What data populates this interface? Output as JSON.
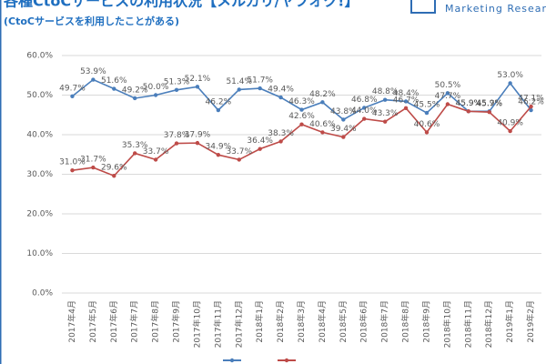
{
  "chart_data": {
    "type": "line",
    "title": "各種CtoCサービスの利用状況【メルカリ/ヤフオク!】",
    "subtitle": "(CtoCサービスを利用したことがある)",
    "logo": "Marketing Research Camp",
    "categories": [
      "2017年4月",
      "2017年5月",
      "2017年6月",
      "2017年7月",
      "2017年8月",
      "2017年9月",
      "2017年10月",
      "2017年11月",
      "2017年12月",
      "2018年1月",
      "2018年2月",
      "2018年3月",
      "2018年4月",
      "2018年5月",
      "2018年6月",
      "2018年7月",
      "2018年8月",
      "2018年9月",
      "2018年10月",
      "2018年11月",
      "2018年12月",
      "2019年1月",
      "2019年2月"
    ],
    "series": [
      {
        "color": "#4a7ebb",
        "values": [
          49.7,
          53.9,
          51.6,
          49.2,
          50.0,
          51.3,
          52.1,
          46.2,
          51.4,
          51.7,
          49.4,
          46.3,
          48.2,
          43.8,
          46.8,
          48.8,
          48.4,
          45.5,
          50.5,
          45.9,
          45.9,
          53.0,
          46.2
        ],
        "value_labels": [
          "49.7%",
          "53.9%",
          "51.6%",
          "49.2%",
          "50.0%",
          "51.3%",
          "52.1%",
          "46.2%",
          "51.4%",
          "51.7%",
          "49.4%",
          "46.3%",
          "48.2%",
          "43.8%",
          "46.8%",
          "48.8%",
          "48.4%",
          "45.5%",
          "50.5%",
          "45.9%",
          "45.9%",
          "53.0%",
          "46.2%"
        ]
      },
      {
        "color": "#be4b48",
        "values": [
          31.0,
          31.7,
          29.6,
          35.3,
          33.7,
          37.8,
          37.9,
          34.9,
          33.7,
          36.4,
          38.3,
          42.6,
          40.6,
          39.4,
          44.0,
          43.3,
          46.7,
          40.6,
          47.7,
          45.9,
          45.7,
          40.9,
          47.1
        ],
        "value_labels": [
          "31.0%",
          "31.7%",
          "29.6%",
          "35.3%",
          "33.7%",
          "37.8%",
          "37.9%",
          "34.9%",
          "33.7%",
          "36.4%",
          "38.3%",
          "42.6%",
          "40.6%",
          "39.4%",
          "44.0%",
          "43.3%",
          "46.7%",
          "40.6%",
          "47.7%",
          "45.9%",
          "45.7%",
          "40.9%",
          "47.1%"
        ]
      }
    ],
    "ylim": [
      0,
      60
    ],
    "yticks": [
      {
        "value": 0,
        "label": "0.0%"
      },
      {
        "value": 10,
        "label": "10.0%"
      },
      {
        "value": 20,
        "label": "20.0%"
      },
      {
        "value": 30,
        "label": "30.0%"
      },
      {
        "value": 40,
        "label": "40.0%"
      },
      {
        "value": 50,
        "label": "50.0%"
      },
      {
        "value": 60,
        "label": "60.0%"
      }
    ],
    "grid": true
  }
}
